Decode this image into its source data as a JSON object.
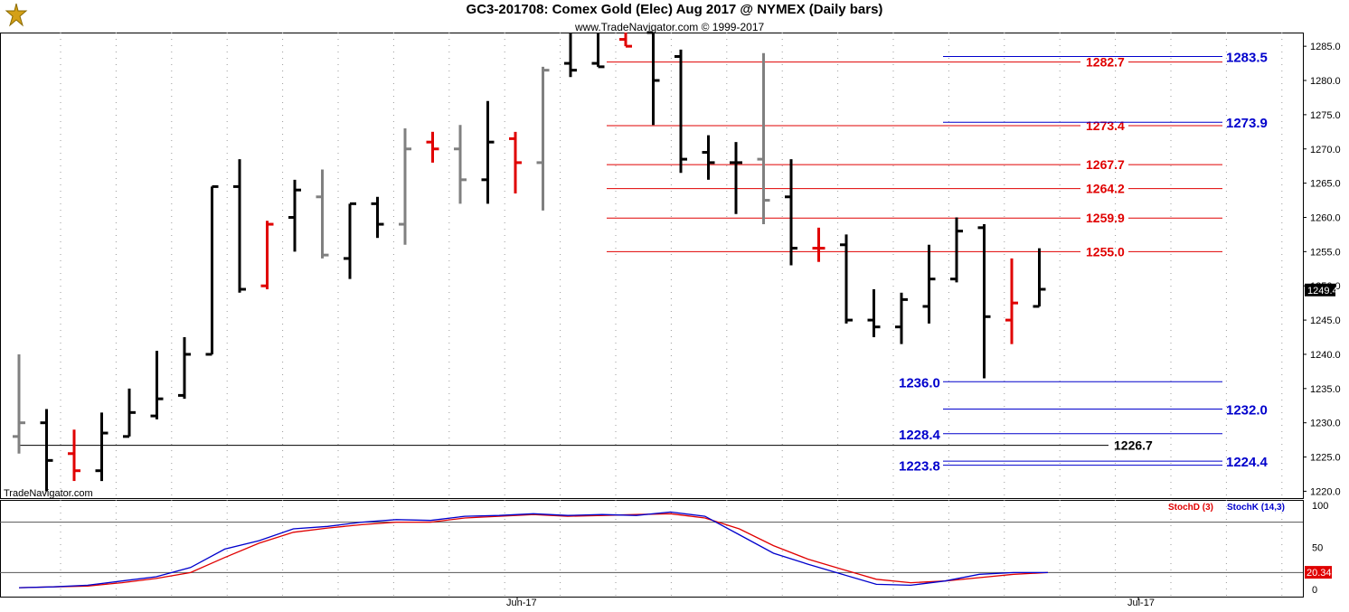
{
  "window": {
    "title": "GC3-201708:  Comex Gold (Elec) Aug 2017 @ NYMEX  (Daily bars)"
  },
  "watermark_top": "www.TradeNavigator.com © 1999-2017",
  "watermark_bottom": "TradeNavigator.com",
  "colors": {
    "up_bar": "#000000",
    "down_bar": "#e00000",
    "neutral_bar": "#808080",
    "level_red": "#e00000",
    "level_blue": "#0000cc",
    "stoch_d": "#e00000",
    "stoch_k": "#0000cc"
  },
  "chart_data": {
    "type": "bar",
    "subtype": "ohlc",
    "title": "GC3-201708:  Comex Gold (Elec) Aug 2017 @ NYMEX  (Daily bars)",
    "ylim": [
      1219,
      1287
    ],
    "y_ticks": [
      "1285.0",
      "1280.0",
      "1275.0",
      "1270.0",
      "1265.0",
      "1260.0",
      "1255.0",
      "1250.0",
      "1245.0",
      "1240.0",
      "1235.0",
      "1230.0",
      "1225.0",
      "1220.0"
    ],
    "x_ticks": [
      "Jun-17",
      "Jul-17"
    ],
    "last_price_label": "1249.4",
    "bars": [
      {
        "o": 1228,
        "h": 1240,
        "l": 1225.5,
        "c": 1230,
        "color": "gray"
      },
      {
        "o": 1230,
        "h": 1232,
        "l": 1220,
        "c": 1224.5,
        "color": "black"
      },
      {
        "o": 1225.5,
        "h": 1229,
        "l": 1221.5,
        "c": 1223,
        "color": "red"
      },
      {
        "o": 1223,
        "h": 1231.5,
        "l": 1221.5,
        "c": 1228.5,
        "color": "black"
      },
      {
        "o": 1228,
        "h": 1235,
        "l": 1228,
        "c": 1231.5,
        "color": "black"
      },
      {
        "o": 1231,
        "h": 1240.5,
        "l": 1230.5,
        "c": 1233.5,
        "color": "black"
      },
      {
        "o": 1234,
        "h": 1242.5,
        "l": 1233.5,
        "c": 1240,
        "color": "black"
      },
      {
        "o": 1240,
        "h": 1264.5,
        "l": 1240,
        "c": 1264.5,
        "color": "black"
      },
      {
        "o": 1264.5,
        "h": 1268.5,
        "l": 1249,
        "c": 1249.5,
        "color": "black"
      },
      {
        "o": 1250,
        "h": 1259.5,
        "l": 1249.5,
        "c": 1259,
        "color": "red"
      },
      {
        "o": 1260,
        "h": 1265.5,
        "l": 1255,
        "c": 1264,
        "color": "black"
      },
      {
        "o": 1263,
        "h": 1267,
        "l": 1254,
        "c": 1254.5,
        "color": "gray"
      },
      {
        "o": 1254,
        "h": 1262,
        "l": 1251,
        "c": 1262,
        "color": "black"
      },
      {
        "o": 1262,
        "h": 1263,
        "l": 1257,
        "c": 1259,
        "color": "black"
      },
      {
        "o": 1259,
        "h": 1273,
        "l": 1256,
        "c": 1270,
        "color": "gray"
      },
      {
        "o": 1271,
        "h": 1272.5,
        "l": 1268,
        "c": 1270,
        "color": "red"
      },
      {
        "o": 1270,
        "h": 1273.5,
        "l": 1262,
        "c": 1265.5,
        "color": "gray"
      },
      {
        "o": 1265.5,
        "h": 1277,
        "l": 1262,
        "c": 1271,
        "color": "black"
      },
      {
        "o": 1271.5,
        "h": 1272.5,
        "l": 1263.5,
        "c": 1268,
        "color": "red"
      },
      {
        "o": 1268,
        "h": 1282,
        "l": 1261,
        "c": 1281.5,
        "color": "gray"
      },
      {
        "o": 1282.5,
        "h": 1287,
        "l": 1280.5,
        "c": 1281.5,
        "color": "black"
      },
      {
        "o": 1282.5,
        "h": 1287,
        "l": 1282,
        "c": 1282,
        "color": "black"
      },
      {
        "o": 1286,
        "h": 1287,
        "l": 1285,
        "c": 1285,
        "color": "red"
      },
      {
        "o": 1287,
        "h": 1287,
        "l": 1273.5,
        "c": 1280,
        "color": "black"
      },
      {
        "o": 1283.5,
        "h": 1284.5,
        "l": 1266.5,
        "c": 1268.5,
        "color": "black"
      },
      {
        "o": 1269.5,
        "h": 1272,
        "l": 1265.5,
        "c": 1268,
        "color": "black"
      },
      {
        "o": 1268,
        "h": 1271,
        "l": 1260.5,
        "c": 1268,
        "color": "black"
      },
      {
        "o": 1268.5,
        "h": 1284,
        "l": 1259,
        "c": 1262.5,
        "color": "gray"
      },
      {
        "o": 1263,
        "h": 1268.5,
        "l": 1253,
        "c": 1255.5,
        "color": "black"
      },
      {
        "o": 1255.5,
        "h": 1258.5,
        "l": 1253.5,
        "c": 1255.5,
        "color": "red"
      },
      {
        "o": 1256,
        "h": 1257.5,
        "l": 1244.5,
        "c": 1245,
        "color": "black"
      },
      {
        "o": 1245,
        "h": 1249.5,
        "l": 1242.5,
        "c": 1244,
        "color": "black"
      },
      {
        "o": 1244,
        "h": 1249,
        "l": 1241.5,
        "c": 1248,
        "color": "black"
      },
      {
        "o": 1247,
        "h": 1256,
        "l": 1244.5,
        "c": 1251,
        "color": "black"
      },
      {
        "o": 1251,
        "h": 1260,
        "l": 1250.5,
        "c": 1258,
        "color": "black"
      },
      {
        "o": 1258.5,
        "h": 1259,
        "l": 1236.5,
        "c": 1245.5,
        "color": "black"
      },
      {
        "o": 1245,
        "h": 1254,
        "l": 1241.5,
        "c": 1247.5,
        "color": "red"
      },
      {
        "o": 1247,
        "h": 1255.5,
        "l": 1247,
        "c": 1249.5,
        "color": "black"
      }
    ],
    "levels_red": [
      "1282.7",
      "1273.4",
      "1267.7",
      "1264.2",
      "1259.9",
      "1255.0"
    ],
    "levels_blue_right": [
      "1283.5",
      "1273.9",
      "1232.0",
      "1224.4"
    ],
    "levels_blue_left": [
      "1236.0",
      "1228.4",
      "1223.8"
    ],
    "level_black": "1226.7",
    "stochastic": {
      "labels": [
        "StochD (3)",
        "StochK (14,3)"
      ],
      "y_ticks": [
        "100",
        "50",
        "0"
      ],
      "last_value_label": "20.34",
      "k": [
        2,
        3,
        5,
        10,
        15,
        26,
        48,
        58,
        72,
        75,
        80,
        83,
        82,
        87,
        88,
        90,
        88,
        89,
        88,
        92,
        87,
        65,
        43,
        30,
        18,
        6,
        5,
        10,
        18,
        20,
        20
      ],
      "d": [
        2,
        3,
        4,
        8,
        13,
        20,
        38,
        55,
        68,
        73,
        77,
        80,
        80,
        85,
        87,
        89,
        87,
        88,
        89,
        90,
        85,
        72,
        52,
        36,
        24,
        12,
        8,
        10,
        14,
        18,
        20
      ]
    }
  }
}
